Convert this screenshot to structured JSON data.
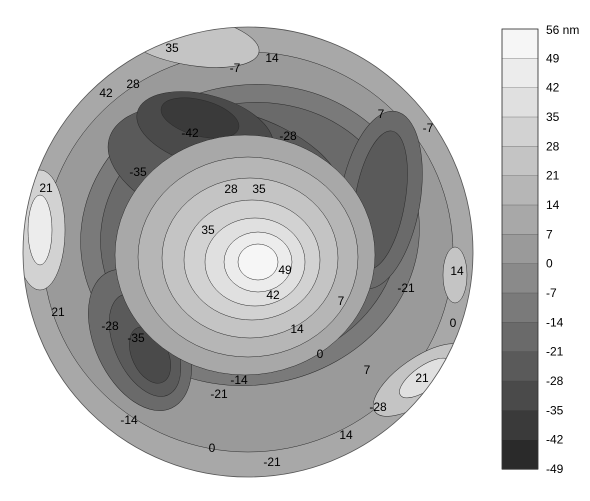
{
  "chart_data": {
    "type": "heatmap",
    "subtype": "filled-contour-disk",
    "title": "",
    "unit": "nm",
    "colorbar_top_label": "56 nm",
    "colorbar_levels": [
      "49",
      "42",
      "35",
      "28",
      "21",
      "14",
      "7",
      "0",
      "-7",
      "-14",
      "-21",
      "-28",
      "-35",
      "-42",
      "-49"
    ],
    "colorbar_range": [
      -49,
      56
    ],
    "level_step": 7,
    "colormap": [
      "#2a2a2a",
      "#3a3a3a",
      "#4a4a4a",
      "#5a5a5a",
      "#6a6a6a",
      "#7a7a7a",
      "#8a8a8a",
      "#9a9a9a",
      "#a8a8a8",
      "#b6b6b6",
      "#c4c4c4",
      "#d2d2d2",
      "#e0e0e0",
      "#ececec",
      "#f6f6f6"
    ],
    "contour_labels": [
      "35",
      "14",
      "-7",
      "28",
      "42",
      "7",
      "-7",
      "-42",
      "-28",
      "-35",
      "21",
      "28",
      "35",
      "35",
      "49",
      "42",
      "14",
      "21",
      "-21",
      "7",
      "14",
      "0",
      "-28",
      "-35",
      "0",
      "-14",
      "-21",
      "7",
      "21",
      "-28",
      "14",
      "-14",
      "0",
      "-21"
    ]
  }
}
